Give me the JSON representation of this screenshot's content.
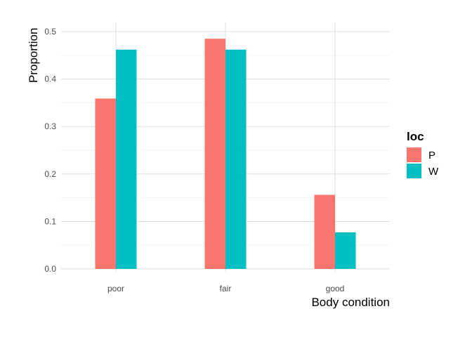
{
  "chart_data": {
    "type": "bar",
    "categories": [
      "poor",
      "fair",
      "good"
    ],
    "series": [
      {
        "name": "P",
        "values": [
          0.359,
          0.485,
          0.156
        ],
        "color": "#F8766D"
      },
      {
        "name": "W",
        "values": [
          0.462,
          0.462,
          0.077
        ],
        "color": "#00BFC4"
      }
    ],
    "xlabel": "Body condition",
    "ylabel": "Proportion",
    "ylim": [
      0,
      0.5
    ],
    "yticks": [
      "0.0",
      "0.1",
      "0.2",
      "0.3",
      "0.4",
      "0.5"
    ],
    "legend": {
      "title": "loc",
      "placement": "right"
    },
    "grid": true
  }
}
